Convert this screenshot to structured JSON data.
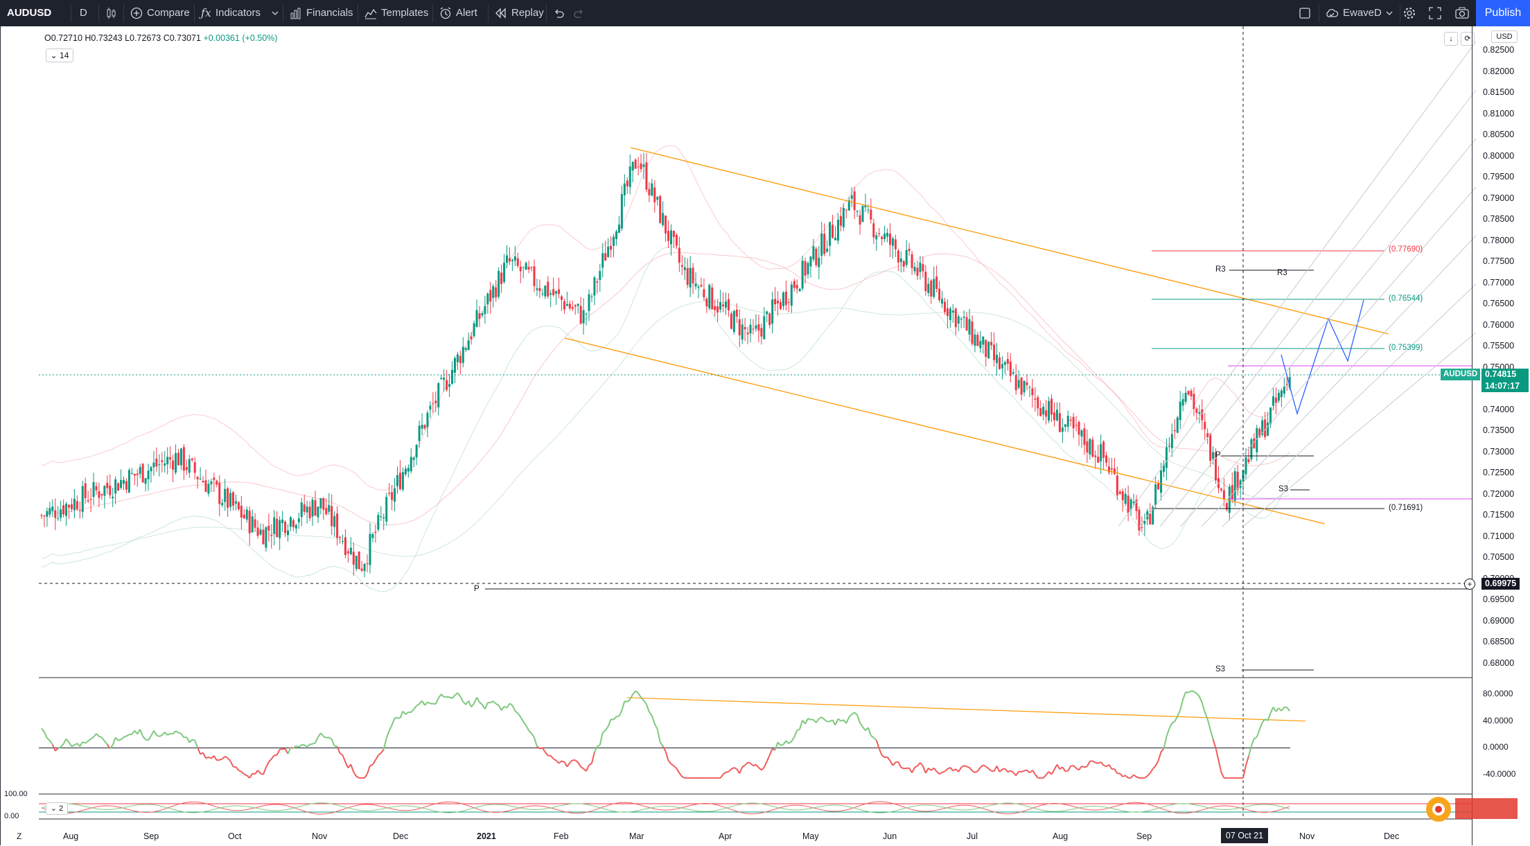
{
  "toolbar": {
    "symbol": "AUDUSD",
    "interval": "D",
    "compare": "Compare",
    "indicators": "Indicators",
    "financials": "Financials",
    "templates": "Templates",
    "alert": "Alert",
    "replay": "Replay",
    "user": "EwaveD",
    "publish": "Publish"
  },
  "legend": {
    "open": "O0.72710",
    "high": "H0.73243",
    "low": "L0.72673",
    "close": "C0.73071",
    "change": "+0.00361 (+0.50%)",
    "ma_chip": "14",
    "osc_chip": "2"
  },
  "axis": {
    "currency": "USD",
    "price_labels": [
      "0.82500",
      "0.82000",
      "0.81500",
      "0.81000",
      "0.80500",
      "0.80000",
      "0.79500",
      "0.79000",
      "0.78500",
      "0.78000",
      "0.77500",
      "0.77000",
      "0.76500",
      "0.76000",
      "0.75500",
      "0.75000",
      "0.74500",
      "0.74000",
      "0.73500",
      "0.73000",
      "0.72500",
      "0.72000",
      "0.71500",
      "0.71000",
      "0.70500",
      "0.70000",
      "0.69500",
      "0.69000",
      "0.68500",
      "0.68000"
    ],
    "osc_labels": [
      "80.0000",
      "40.0000",
      "0.0000",
      "-40.0000"
    ],
    "stoch_labels": [
      "100.00",
      "0.00"
    ],
    "time_labels": [
      "Aug",
      "Sep",
      "Oct",
      "Nov",
      "Dec",
      "2021",
      "Feb",
      "Mar",
      "Apr",
      "May",
      "Jun",
      "Jul",
      "Aug",
      "Sep",
      "Nov",
      "Dec"
    ],
    "current_price": "0.74815",
    "countdown": "14:07:17",
    "symbol_tag": "AUDUSD",
    "crosshair_price": "0.69975",
    "crosshair_date": "07 Oct 21"
  },
  "levels": {
    "fib1": "(0.77690)",
    "fib2": "(0.76544)",
    "fib3": "(0.75399)",
    "fib4": "(0.71691)",
    "r3a": "R3",
    "r3b": "R3",
    "p1": "P",
    "s3a": "S3",
    "p2": "P",
    "s3b": "S3"
  },
  "colors": {
    "bull": "#089981",
    "bear": "#f23645",
    "channel": "#ff9800",
    "projection": "#2962ff",
    "accent": "#2962ff"
  },
  "chart_data": {
    "type": "candlestick",
    "symbol": "AUDUSD",
    "ylim": [
      0.678,
      0.826
    ],
    "x_months": [
      "Aug",
      "Sep",
      "Oct",
      "Nov",
      "Dec",
      "2021",
      "Feb",
      "Mar",
      "Apr",
      "May",
      "Jun",
      "Jul",
      "Aug",
      "Sep",
      "Oct",
      "Nov",
      "Dec"
    ],
    "close_path": [
      [
        "Aug",
        0.715
      ],
      [
        "Sep",
        0.729
      ],
      [
        "Oct",
        0.711
      ],
      [
        "Nov",
        0.718
      ],
      [
        "Nov",
        0.703
      ],
      [
        "Dec",
        0.738
      ],
      [
        "2021",
        0.775
      ],
      [
        "Feb",
        0.762
      ],
      [
        "Mar",
        0.8
      ],
      [
        "Mar",
        0.773
      ],
      [
        "Apr",
        0.757
      ],
      [
        "May",
        0.775
      ],
      [
        "May",
        0.789
      ],
      [
        "Jun",
        0.773
      ],
      [
        "Jul",
        0.75
      ],
      [
        "Aug",
        0.737
      ],
      [
        "Aug",
        0.729
      ],
      [
        "Sep",
        0.711
      ],
      [
        "Sep",
        0.747
      ],
      [
        "Oct",
        0.719
      ],
      [
        "Oct",
        0.748
      ]
    ],
    "fib_levels": [
      0.7769,
      0.76544,
      0.75399,
      0.71691
    ],
    "pivots": {
      "P": 0.6994,
      "S3_lower": 0.68,
      "R3": 0.7719,
      "P_recent": 0.7289,
      "S3_recent": 0.721
    },
    "oscillator": {
      "range": [
        -40,
        80
      ],
      "last": 55
    }
  }
}
